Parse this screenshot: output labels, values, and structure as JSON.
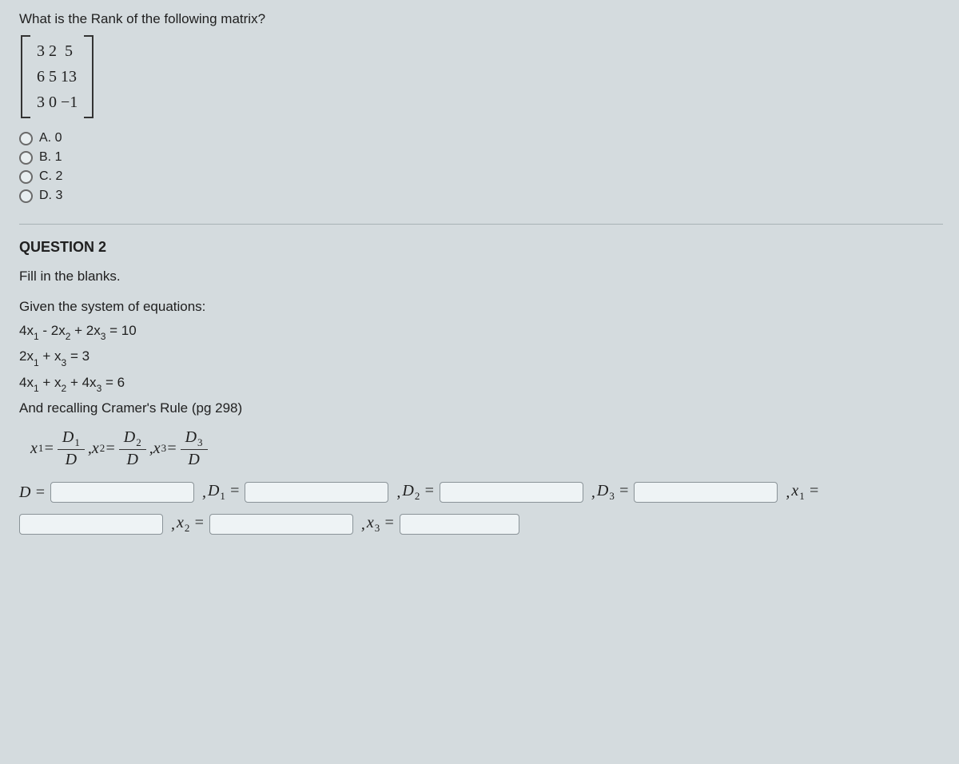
{
  "q1": {
    "prompt": "What is the Rank of the following matrix?",
    "matrix_rows": [
      "3 2  5",
      "6 5 13",
      "3 0 −1"
    ],
    "options": [
      {
        "key": "A",
        "label": "A. 0"
      },
      {
        "key": "B",
        "label": "B. 1"
      },
      {
        "key": "C",
        "label": "C. 2"
      },
      {
        "key": "D",
        "label": "D. 3"
      }
    ]
  },
  "q2": {
    "title": "QUESTION 2",
    "fill": "Fill in the blanks.",
    "given": "Given the system of equations:",
    "eq1": {
      "text": "4x",
      "s1": "1",
      "mid": " - 2x",
      "s2": "2",
      "mid2": " + 2x",
      "s3": "3",
      "tail": " = 10"
    },
    "eq2": {
      "text": "2x",
      "s1": "1",
      "mid": " + x",
      "s2": "3",
      "tail": " = 3"
    },
    "eq3": {
      "text": "4x",
      "s1": "1",
      "mid": " + x",
      "s2": "2",
      "mid2": " + 4x",
      "s3": "3",
      "tail": " = 6"
    },
    "cramer": "And recalling Cramer's Rule (pg 298)",
    "formula": {
      "x": "x",
      "D": "D",
      "s1": "1",
      "s2": "2",
      "s3": "3",
      "eq": " = ",
      "comma": " , "
    },
    "answers": {
      "D": "D",
      "x": "x",
      "eq": " = ",
      "s1": "1",
      "s2": "2",
      "s3": "3",
      "comma": ", "
    }
  },
  "colors": {
    "bg": "#d4dbde",
    "text": "#202020",
    "border": "#8a9398",
    "sep": "#a8b2b6"
  }
}
